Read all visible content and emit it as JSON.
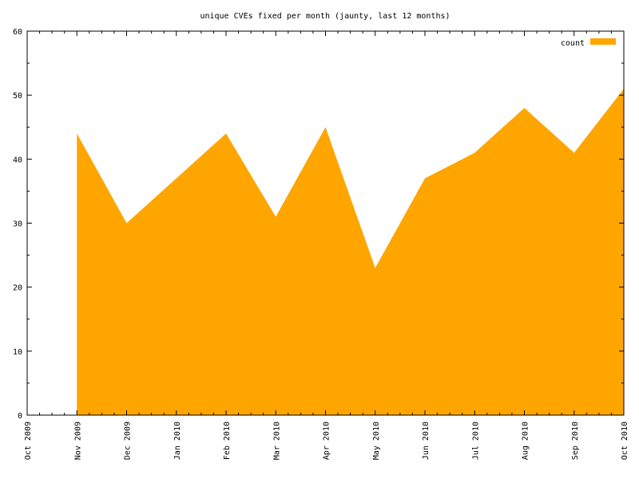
{
  "chart_data": {
    "type": "area",
    "title": "unique CVEs fixed per month (jaunty, last 12 months)",
    "xlabel": "",
    "ylabel": "",
    "x_ticks": [
      "Oct 2009",
      "Nov 2009",
      "Dec 2009",
      "Jan 2010",
      "Feb 2010",
      "Mar 2010",
      "Apr 2010",
      "May 2010",
      "Jun 2010",
      "Jul 2010",
      "Aug 2010",
      "Sep 2010",
      "Oct 2010"
    ],
    "ylim": [
      0,
      60
    ],
    "y_ticks": [
      0,
      10,
      20,
      30,
      40,
      50,
      60
    ],
    "legend_position": "top-right",
    "grid": false,
    "series": [
      {
        "name": "count",
        "color": "#ffa500",
        "x": [
          "Nov 2009",
          "Dec 2009",
          "Jan 2010",
          "Feb 2010",
          "Mar 2010",
          "Apr 2010",
          "May 2010",
          "Jun 2010",
          "Jul 2010",
          "Aug 2010",
          "Sep 2010",
          "Oct 2010"
        ],
        "values": [
          44,
          30,
          37,
          44,
          31,
          45,
          23,
          37,
          41,
          48,
          41,
          51
        ]
      }
    ]
  }
}
